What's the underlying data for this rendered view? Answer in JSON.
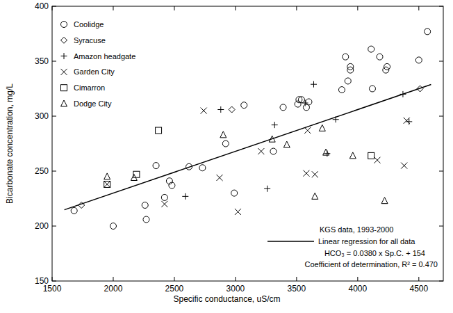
{
  "chart_data": {
    "type": "scatter",
    "x_label": "Specific conductance, uS/cm",
    "y_label": "Bicarbonate concentration, mg/L",
    "xlim": [
      1500,
      4700
    ],
    "ylim": [
      150,
      400
    ],
    "xticks": [
      1500,
      2000,
      2500,
      3000,
      3500,
      4000,
      4500
    ],
    "yticks": [
      150,
      200,
      250,
      300,
      350,
      400
    ],
    "grid": false,
    "legend": "upper left",
    "annotations": [
      "KGS data, 1993-2000",
      "HCO₃ = 0.0380 x Sp.C. + 154",
      "Coefficient of determination, R² = 0.470"
    ],
    "series": [
      {
        "name": "Coolidge",
        "color": "#000000",
        "marker": "circle",
        "x": [
          1680,
          2000,
          2260,
          2270,
          2350,
          2420,
          2460,
          2480,
          2620,
          2730,
          2920,
          2990,
          3070,
          3310,
          3390,
          3510,
          3520,
          3540,
          3580,
          3600,
          3870,
          3900,
          3920,
          3940,
          3940,
          4110,
          4120,
          4180,
          4230,
          4240,
          4500,
          4570
        ],
        "values": [
          214,
          200,
          219,
          206,
          255,
          226,
          241,
          237,
          254,
          253,
          275,
          230,
          310,
          268,
          308,
          311,
          315,
          315,
          308,
          313,
          324,
          354,
          332,
          342,
          345,
          361,
          325,
          354,
          342,
          345,
          351,
          377
        ]
      },
      {
        "name": "Syracuse",
        "color": "#000000",
        "marker": "diamond",
        "x": [
          1740,
          2970,
          4510
        ],
        "values": [
          219,
          306,
          325
        ]
      },
      {
        "name": "Amazon headgate",
        "color": "#000000",
        "marker": "plus",
        "x": [
          2590,
          2880,
          3260,
          3320,
          3570,
          3640,
          3750,
          3820,
          4370,
          4420
        ],
        "values": [
          227,
          306,
          234,
          292,
          312,
          329,
          266,
          297,
          320,
          295
        ]
      },
      {
        "name": "Garden City",
        "color": "#000000",
        "marker": "cross",
        "x": [
          1950,
          2420,
          2740,
          2870,
          3020,
          3210,
          3580,
          3590,
          3650,
          4160,
          4380,
          4400
        ],
        "values": [
          238,
          220,
          305,
          244,
          213,
          268,
          248,
          287,
          247,
          260,
          255,
          296
        ]
      },
      {
        "name": "Cimarron",
        "color": "#000000",
        "marker": "square",
        "x": [
          1950,
          2190,
          2370,
          4110
        ],
        "values": [
          238,
          247,
          287,
          264
        ]
      },
      {
        "name": "Dodge City",
        "color": "#000000",
        "marker": "triangle",
        "x": [
          1950,
          2170,
          2900,
          3300,
          3420,
          3650,
          3710,
          3740,
          3960,
          4220
        ],
        "values": [
          245,
          244,
          283,
          279,
          274,
          227,
          289,
          267,
          264,
          223
        ]
      },
      {
        "name": "Linear regression for all data",
        "type": "line",
        "color": "#000000",
        "line_style": "solid",
        "x": [
          1600,
          4600
        ],
        "values": [
          214.8,
          328.8
        ]
      }
    ]
  }
}
